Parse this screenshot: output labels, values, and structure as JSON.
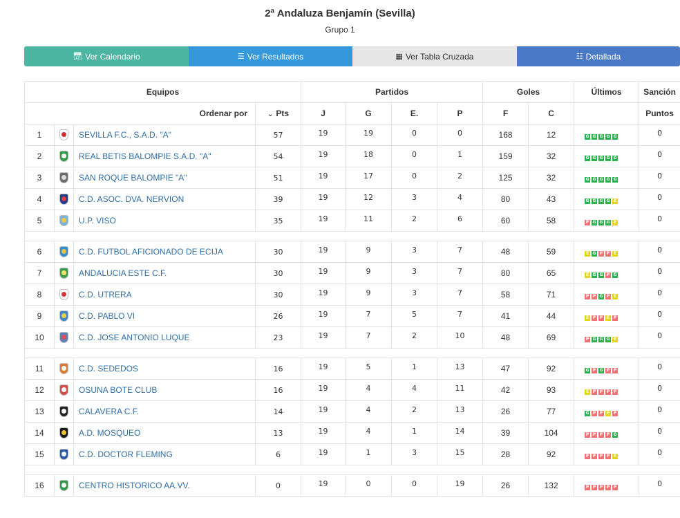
{
  "header": {
    "title": "2ª Andaluza Benjamín (Sevilla)",
    "subtitle": "Grupo 1"
  },
  "buttons": {
    "calendar": "Ver Calendario",
    "results": "Ver Resultados",
    "cross_table": "Ver Tabla Cruzada",
    "detailed": "Detallada"
  },
  "table": {
    "groups": {
      "equipos": "Equipos",
      "partidos": "Partidos",
      "goles": "Goles",
      "ultimos": "Últimos",
      "sancion": "Sanción"
    },
    "columns": {
      "sort_by": "Ordenar por",
      "pts": "Pts",
      "j": "J",
      "g": "G",
      "e": "E.",
      "p": "P",
      "f": "F",
      "c": "C",
      "puntos": "Puntos"
    },
    "rows": [
      {
        "pos": "1",
        "team": "SEVILLA F.C., S.A.D. \"A\"",
        "pts": "57",
        "j": "19",
        "g": "19",
        "e": "0",
        "p": "0",
        "f": "168",
        "c": "12",
        "last": [
          "G",
          "G",
          "G",
          "G",
          "G"
        ],
        "sancion": "0",
        "crest_a": "#ffffff",
        "crest_b": "#d62d2d"
      },
      {
        "pos": "2",
        "team": "REAL BETIS BALOMPIE S.A.D. \"A\"",
        "pts": "54",
        "j": "19",
        "g": "18",
        "e": "0",
        "p": "1",
        "f": "159",
        "c": "32",
        "last": [
          "G",
          "G",
          "G",
          "G",
          "G"
        ],
        "sancion": "0",
        "crest_a": "#2e9b47",
        "crest_b": "#ffffff"
      },
      {
        "pos": "3",
        "team": "SAN ROQUE BALOMPIE \"A\"",
        "pts": "51",
        "j": "19",
        "g": "17",
        "e": "0",
        "p": "2",
        "f": "125",
        "c": "32",
        "last": [
          "G",
          "G",
          "G",
          "G",
          "G"
        ],
        "sancion": "0",
        "crest_a": "#6d6d6d",
        "crest_b": "#dcdcdc"
      },
      {
        "pos": "4",
        "team": "C.D. ASOC. DVA. NERVION",
        "pts": "39",
        "j": "19",
        "g": "12",
        "e": "3",
        "p": "4",
        "f": "80",
        "c": "43",
        "last": [
          "G",
          "G",
          "G",
          "G",
          "E"
        ],
        "sancion": "0",
        "crest_a": "#1f3c8f",
        "crest_b": "#e23c3c"
      },
      {
        "pos": "5",
        "team": "U.P. VISO",
        "pts": "35",
        "j": "19",
        "g": "11",
        "e": "2",
        "p": "6",
        "f": "60",
        "c": "58",
        "last": [
          "P",
          "G",
          "G",
          "G",
          "E"
        ],
        "sancion": "0",
        "crest_a": "#7ab3d9",
        "crest_b": "#f2c744"
      },
      {
        "pos": "6",
        "team": "C.D. FUTBOL AFICIONADO DE ECIJA",
        "pts": "30",
        "j": "19",
        "g": "9",
        "e": "3",
        "p": "7",
        "f": "48",
        "c": "59",
        "last": [
          "E",
          "G",
          "P",
          "P",
          "E"
        ],
        "sancion": "0",
        "crest_a": "#2d8fd4",
        "crest_b": "#f0c23a"
      },
      {
        "pos": "7",
        "team": "ANDALUCIA ESTE C.F.",
        "pts": "30",
        "j": "19",
        "g": "9",
        "e": "3",
        "p": "7",
        "f": "80",
        "c": "65",
        "last": [
          "E",
          "G",
          "G",
          "P",
          "G"
        ],
        "sancion": "0",
        "crest_a": "#3d9e4c",
        "crest_b": "#f5e36b"
      },
      {
        "pos": "8",
        "team": "C.D. UTRERA",
        "pts": "30",
        "j": "19",
        "g": "9",
        "e": "3",
        "p": "7",
        "f": "58",
        "c": "71",
        "last": [
          "P",
          "P",
          "G",
          "P",
          "E"
        ],
        "sancion": "0",
        "crest_a": "#ffffff",
        "crest_b": "#d73434"
      },
      {
        "pos": "9",
        "team": "C.D. PABLO VI",
        "pts": "26",
        "j": "19",
        "g": "7",
        "e": "5",
        "p": "7",
        "f": "41",
        "c": "44",
        "last": [
          "E",
          "P",
          "P",
          "E",
          "P"
        ],
        "sancion": "0",
        "crest_a": "#3f86c9",
        "crest_b": "#f2d04a"
      },
      {
        "pos": "10",
        "team": "C.D. JOSE ANTONIO LUQUE",
        "pts": "23",
        "j": "19",
        "g": "7",
        "e": "2",
        "p": "10",
        "f": "48",
        "c": "69",
        "last": [
          "P",
          "G",
          "G",
          "G",
          "E"
        ],
        "sancion": "0",
        "crest_a": "#5e7fb8",
        "crest_b": "#e05050"
      },
      {
        "pos": "11",
        "team": "C.D. SEDEDOS",
        "pts": "16",
        "j": "19",
        "g": "5",
        "e": "1",
        "p": "13",
        "f": "47",
        "c": "92",
        "last": [
          "G",
          "P",
          "G",
          "P",
          "P"
        ],
        "sancion": "0",
        "crest_a": "#e07a2e",
        "crest_b": "#ffffff"
      },
      {
        "pos": "12",
        "team": "OSUNA BOTE CLUB",
        "pts": "16",
        "j": "19",
        "g": "4",
        "e": "4",
        "p": "11",
        "f": "42",
        "c": "93",
        "last": [
          "E",
          "P",
          "P",
          "P",
          "P"
        ],
        "sancion": "0",
        "crest_a": "#d94a4a",
        "crest_b": "#ffffff"
      },
      {
        "pos": "13",
        "team": "CALAVERA C.F.",
        "pts": "14",
        "j": "19",
        "g": "4",
        "e": "2",
        "p": "13",
        "f": "26",
        "c": "77",
        "last": [
          "G",
          "P",
          "P",
          "E",
          "P"
        ],
        "sancion": "0",
        "crest_a": "#222222",
        "crest_b": "#ffffff"
      },
      {
        "pos": "14",
        "team": "A.D. MOSQUEO",
        "pts": "13",
        "j": "19",
        "g": "4",
        "e": "1",
        "p": "14",
        "f": "39",
        "c": "104",
        "last": [
          "P",
          "P",
          "P",
          "P",
          "G"
        ],
        "sancion": "0",
        "crest_a": "#1a1a1a",
        "crest_b": "#f2c230"
      },
      {
        "pos": "15",
        "team": "C.D. DOCTOR FLEMING",
        "pts": "6",
        "j": "19",
        "g": "1",
        "e": "3",
        "p": "15",
        "f": "28",
        "c": "92",
        "last": [
          "P",
          "P",
          "P",
          "P",
          "E"
        ],
        "sancion": "0",
        "crest_a": "#2a58a8",
        "crest_b": "#ffffff"
      },
      {
        "pos": "16",
        "team": "CENTRO HISTORICO AA.VV.",
        "pts": "0",
        "j": "19",
        "g": "0",
        "e": "0",
        "p": "19",
        "f": "26",
        "c": "132",
        "last": [
          "P",
          "P",
          "P",
          "P",
          "P"
        ],
        "sancion": "0",
        "crest_a": "#2f9a4a",
        "crest_b": "#ffffff"
      }
    ],
    "spacers_after": [
      "5",
      "10",
      "15"
    ]
  }
}
